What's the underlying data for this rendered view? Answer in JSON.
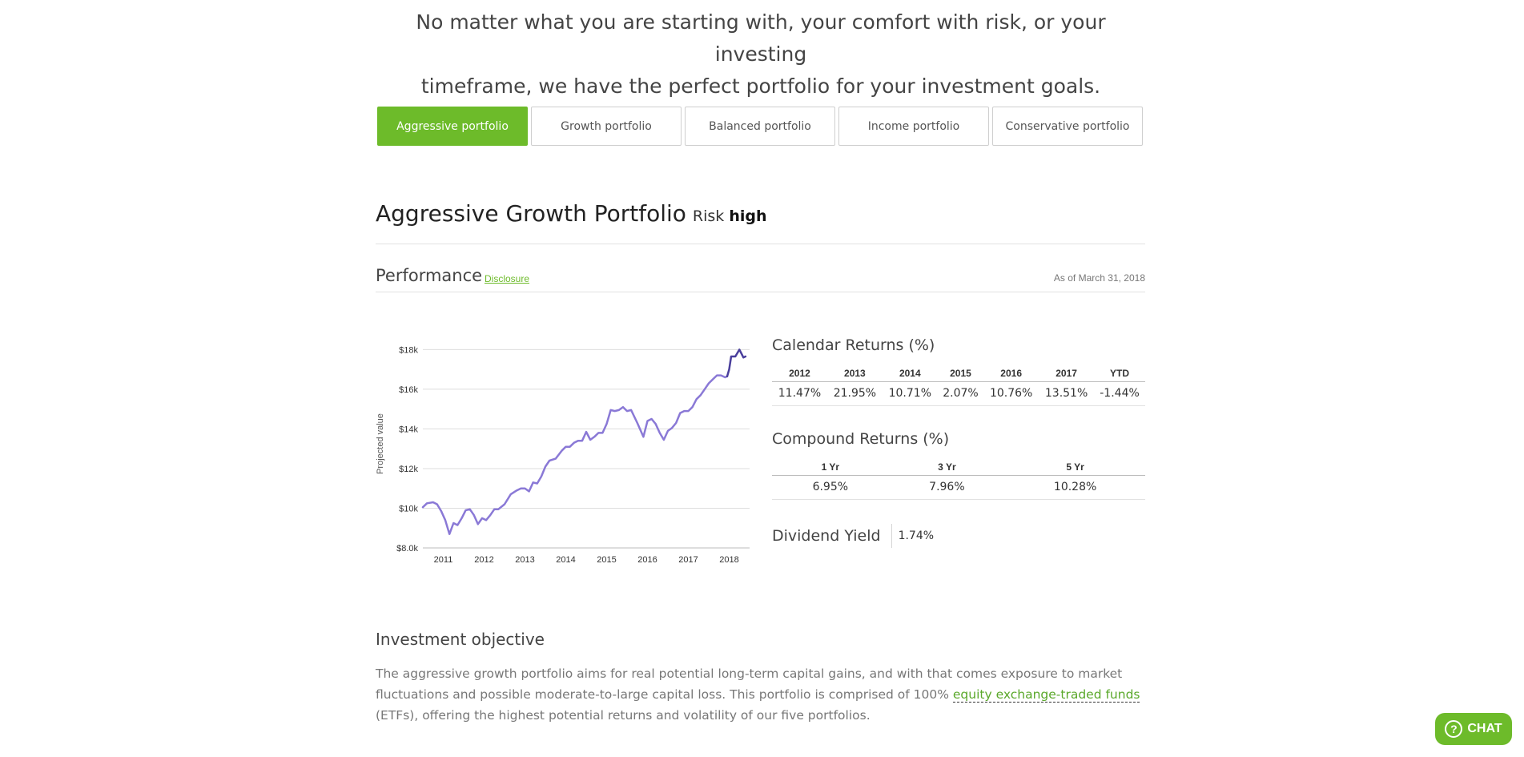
{
  "intro": {
    "line1": "No matter what you are starting with, your comfort with risk, or your investing",
    "line2": "timeframe, we have the perfect portfolio for your investment goals."
  },
  "tabs": [
    {
      "label": "Aggressive portfolio",
      "active": true
    },
    {
      "label": "Growth portfolio",
      "active": false
    },
    {
      "label": "Balanced portfolio",
      "active": false
    },
    {
      "label": "Income portfolio",
      "active": false
    },
    {
      "label": "Conservative portfolio",
      "active": false
    }
  ],
  "portfolio": {
    "title": "Aggressive Growth Portfolio",
    "risk_label": "Risk",
    "risk_value": "high"
  },
  "performance": {
    "title": "Performance",
    "disclosure_label": "Disclosure",
    "as_of": "As of March 31, 2018"
  },
  "colors": {
    "accent": "#6dbb2a",
    "line": "#8a79d6",
    "line_dark": "#4a3f9c"
  },
  "chart_data": {
    "type": "line",
    "ylabel": "Projected value",
    "ylim": [
      8000,
      18500
    ],
    "yticks": [
      {
        "value": 8000,
        "label": "$8.0k"
      },
      {
        "value": 10000,
        "label": "$10k"
      },
      {
        "value": 12000,
        "label": "$12k"
      },
      {
        "value": 14000,
        "label": "$14k"
      },
      {
        "value": 16000,
        "label": "$16k"
      },
      {
        "value": 18000,
        "label": "$18k"
      }
    ],
    "xlim": [
      2010.5,
      2018.5
    ],
    "xticks": [
      {
        "value": 2011,
        "label": "2011"
      },
      {
        "value": 2012,
        "label": "2012"
      },
      {
        "value": 2013,
        "label": "2013"
      },
      {
        "value": 2014,
        "label": "2014"
      },
      {
        "value": 2015,
        "label": "2015"
      },
      {
        "value": 2016,
        "label": "2016"
      },
      {
        "value": 2017,
        "label": "2017"
      },
      {
        "value": 2018,
        "label": "2018"
      }
    ],
    "grid": true,
    "legend": "none",
    "series": [
      {
        "x": [
          2010.5,
          2010.6,
          2010.75,
          2010.85,
          2010.95,
          2011.05,
          2011.15,
          2011.25,
          2011.35,
          2011.45,
          2011.55,
          2011.65,
          2011.75,
          2011.85,
          2011.95,
          2012.05,
          2012.15,
          2012.25,
          2012.35,
          2012.5,
          2012.65,
          2012.8,
          2012.9,
          2013.0,
          2013.1,
          2013.2,
          2013.3,
          2013.4,
          2013.5,
          2013.6,
          2013.75,
          2013.9,
          2014.0,
          2014.1,
          2014.2,
          2014.3,
          2014.4,
          2014.5,
          2014.6,
          2014.7,
          2014.8,
          2014.9,
          2015.0,
          2015.1,
          2015.2,
          2015.3,
          2015.4,
          2015.5,
          2015.6,
          2015.75,
          2015.9,
          2016.0,
          2016.1,
          2016.2,
          2016.3,
          2016.4,
          2016.5,
          2016.6,
          2016.7,
          2016.8,
          2016.9,
          2017.0,
          2017.1,
          2017.2,
          2017.3,
          2017.4,
          2017.5,
          2017.6,
          2017.7,
          2017.8,
          2017.9,
          2017.95
        ],
        "y": [
          10050,
          10250,
          10300,
          10200,
          9850,
          9400,
          8700,
          9250,
          9150,
          9500,
          9900,
          9950,
          9650,
          9200,
          9500,
          9400,
          9650,
          9950,
          9950,
          10200,
          10700,
          10900,
          11000,
          11000,
          10850,
          11300,
          11250,
          11600,
          12100,
          12400,
          12500,
          12900,
          13100,
          13100,
          13300,
          13400,
          13400,
          13850,
          13450,
          13600,
          13800,
          13800,
          14250,
          14950,
          14900,
          14950,
          15100,
          14900,
          14950,
          14300,
          13600,
          14400,
          14500,
          14250,
          13800,
          13450,
          13900,
          14050,
          14300,
          14800,
          14900,
          14900,
          15100,
          15500,
          15700,
          16000,
          16300,
          16500,
          16700,
          16700,
          16600,
          16650
        ],
        "color": "#8a79d6"
      },
      {
        "x": [
          2017.95,
          2018.0,
          2018.05,
          2018.15,
          2018.25,
          2018.3,
          2018.35,
          2018.4
        ],
        "y": [
          16650,
          17000,
          17650,
          17650,
          18000,
          17800,
          17600,
          17650
        ],
        "color": "#4a3f9c"
      }
    ]
  },
  "calendar": {
    "title": "Calendar Returns (%)",
    "headers": [
      "2012",
      "2013",
      "2014",
      "2015",
      "2016",
      "2017",
      "YTD"
    ],
    "values": [
      "11.47%",
      "21.95%",
      "10.71%",
      "2.07%",
      "10.76%",
      "13.51%",
      "-1.44%"
    ]
  },
  "compound": {
    "title": "Compound Returns (%)",
    "headers": [
      "1 Yr",
      "3 Yr",
      "5 Yr"
    ],
    "values": [
      "6.95%",
      "7.96%",
      "10.28%"
    ]
  },
  "dividend": {
    "title": "Dividend Yield",
    "value": "1.74%"
  },
  "objective": {
    "title": "Investment objective",
    "text_before": "The aggressive growth portfolio aims for real potential long-term capital gains, and with that comes exposure to market fluctuations and possible moderate-to-large capital loss. This portfolio is comprised of 100% ",
    "link": "equity exchange-traded funds",
    "text_after": " (ETFs), offering the highest potential returns and volatility of our five portfolios."
  },
  "chat": {
    "icon": "question-icon",
    "label": "CHAT"
  }
}
